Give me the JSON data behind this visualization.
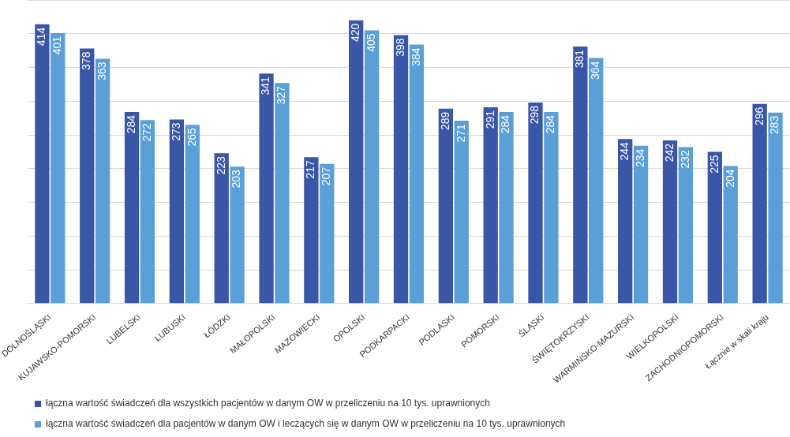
{
  "chart_data": {
    "type": "bar",
    "categories": [
      "DOLNOŚLĄSKI",
      "KUJAWSKO-POMORSKI",
      "LUBELSKI",
      "LUBUSKI",
      "ŁÓDZKI",
      "MAŁOPOLSKI",
      "MAZOWIECKI",
      "OPOLSKI",
      "PODKARPACKI",
      "PODLASKI",
      "POMORSKI",
      "ŚLĄSKI",
      "ŚWIĘTOKRZYSKI",
      "WARMIŃSKO-MAZURSKI",
      "WIELKOPOLSKI",
      "ZACHODNIOPOMORSKI",
      "Łącznie w skali kraju"
    ],
    "series": [
      {
        "name": "łączna wartość świadczeń dla wszystkich pacjentów w danym OW w przeliczeniu na 10 tys. uprawnionych",
        "color": "#3a56a6",
        "values": [
          414,
          378,
          284,
          273,
          223,
          341,
          217,
          420,
          398,
          289,
          291,
          298,
          381,
          244,
          242,
          225,
          296
        ]
      },
      {
        "name": "łączna wartość świadczeń dla pacjentów w danym OW i leczących się w danym OW w przeliczeniu na 10 tys. uprawnionych",
        "color": "#5b9fd8",
        "values": [
          401,
          363,
          272,
          265,
          203,
          327,
          207,
          405,
          384,
          271,
          284,
          284,
          364,
          234,
          232,
          204,
          283
        ]
      }
    ],
    "ylim": [
      0,
      450
    ],
    "yticks": [
      {
        "value": 0,
        "label": null
      },
      {
        "value": 50,
        "label": null
      },
      {
        "value": 100,
        "label": null
      },
      {
        "value": 150,
        "label": null
      },
      {
        "value": 200,
        "label": null
      },
      {
        "value": 250,
        "label": null
      },
      {
        "value": 300,
        "label": null
      },
      {
        "value": 350,
        "label": null
      },
      {
        "value": 400,
        "label": null
      },
      {
        "value": 450,
        "label": null
      }
    ],
    "grid": "y",
    "legend": "bottom",
    "tick_labels": "x",
    "data_labels": true
  }
}
